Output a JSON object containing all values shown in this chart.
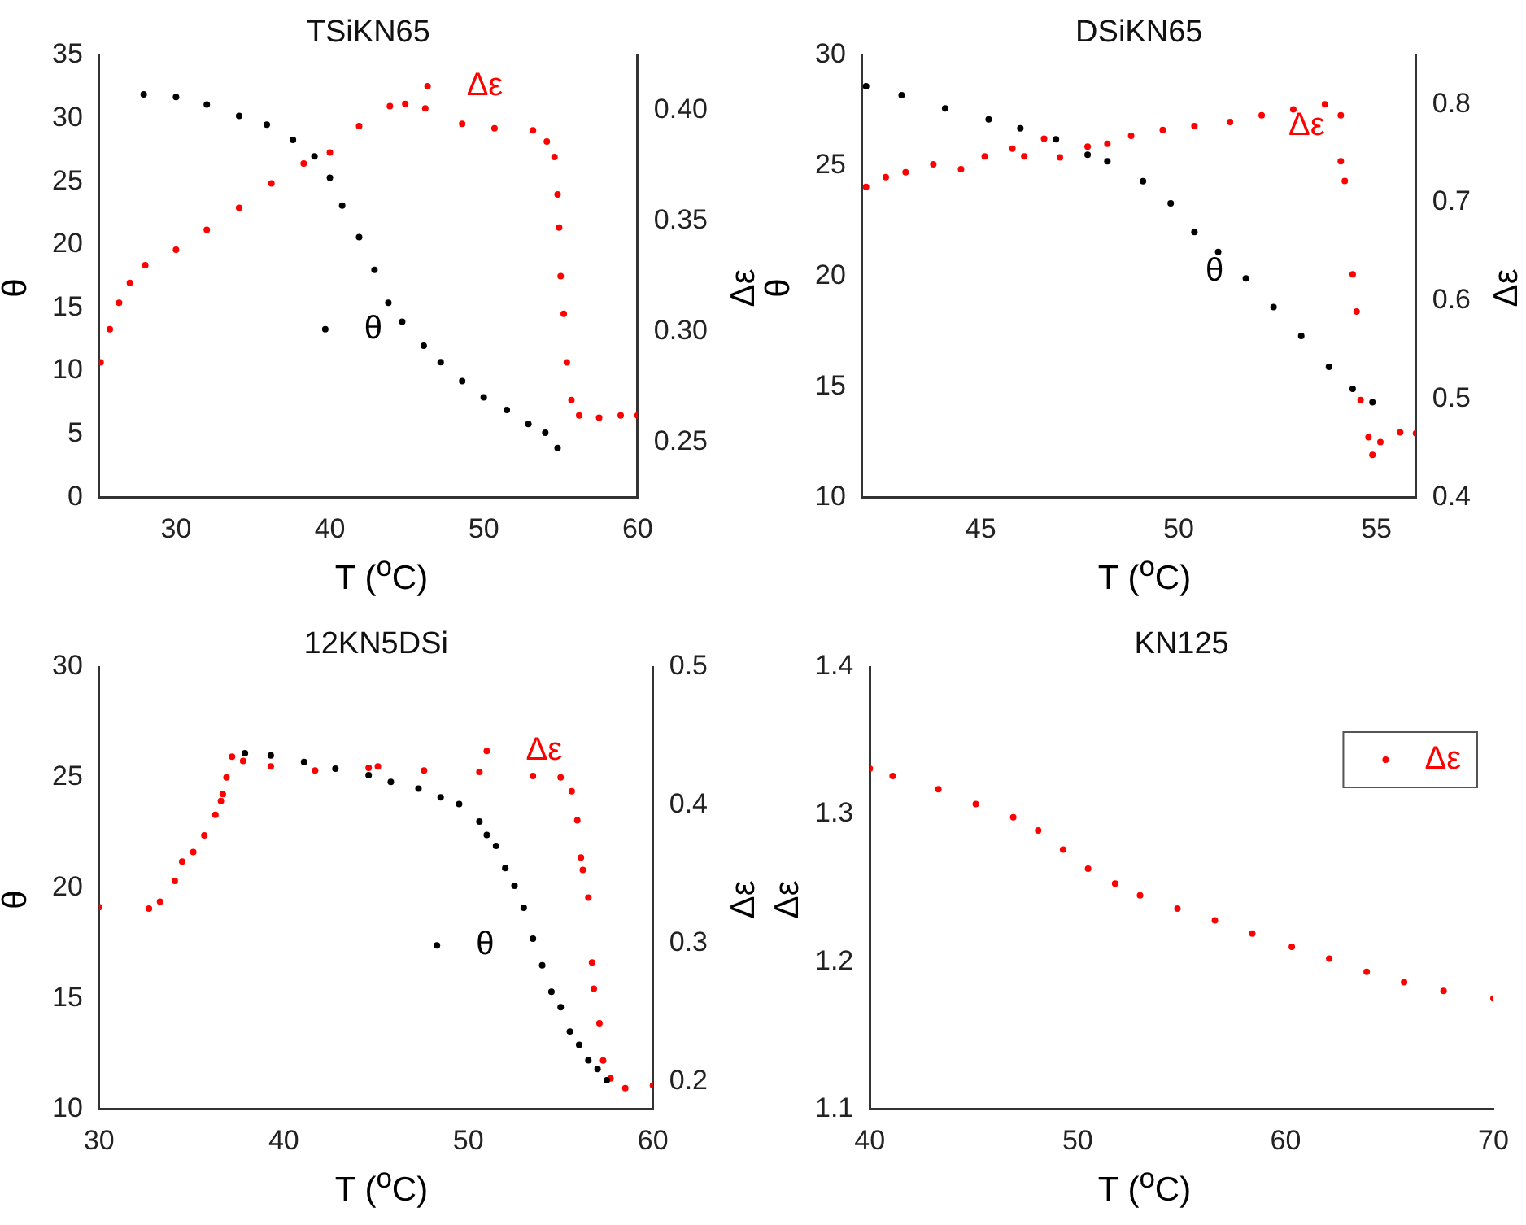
{
  "chart_data": [
    {
      "type": "scatter",
      "title": "TSiKN65",
      "xlabel": "T ($^{o}$C)",
      "ylabel": "θ",
      "y2label": "Δε",
      "marker": "circle",
      "legend": "center",
      "xlim": [
        25,
        60
      ],
      "xticks": [
        30,
        40,
        50,
        60
      ],
      "ylim": [
        0,
        35
      ],
      "yticks": [
        0,
        5,
        10,
        15,
        20,
        25,
        30,
        35
      ],
      "y2lim": [
        0.225,
        0.425
      ],
      "y2ticks": [
        0.25,
        {
          "value": 0.3,
          "label": "0.30"
        },
        0.35,
        {
          "value": 0.4,
          "label": "0.40"
        }
      ],
      "series": [
        {
          "name": "θ",
          "color": "#000000",
          "x": [
            27.9,
            30,
            32,
            34.1,
            35.9,
            37.6,
            39,
            40,
            40.8,
            41.9,
            42.9,
            43.8,
            44.7,
            46.1,
            47.2,
            48.6,
            50,
            51.5,
            52.9,
            54,
            54.8
          ],
          "values": [
            31.9,
            31.7,
            31.1,
            30.2,
            29.5,
            28.3,
            27.0,
            25.3,
            23.1,
            20.6,
            18.0,
            15.4,
            13.9,
            12.0,
            10.7,
            9.2,
            7.9,
            6.9,
            5.8,
            5.1,
            3.9
          ]
        },
        {
          "name": "Δε",
          "color": "#ff0000",
          "axis": "y2",
          "x": [
            25.1,
            25.7,
            26.3,
            27,
            28,
            30,
            32,
            34.1,
            36.2,
            38.3,
            40,
            41.9,
            43.9,
            44.9,
            46.2,
            48.6,
            50.7,
            53.2,
            54.1,
            54.6,
            54.8,
            54.9,
            55,
            55.2,
            55.4,
            55.7,
            56.2,
            57.5,
            58.9,
            60
          ],
          "values": [
            0.286,
            0.301,
            0.313,
            0.322,
            0.33,
            0.337,
            0.346,
            0.356,
            0.367,
            0.376,
            0.381,
            0.393,
            0.402,
            0.403,
            0.401,
            0.394,
            0.392,
            0.391,
            0.386,
            0.379,
            0.362,
            0.347,
            0.325,
            0.308,
            0.286,
            0.269,
            0.262,
            0.261,
            0.262,
            0.262
          ]
        }
      ]
    },
    {
      "type": "scatter",
      "title": "DSiKN65",
      "xlabel": "T ($^{o}$C)",
      "ylabel": "θ",
      "y2label": "Δε",
      "marker": "circle",
      "xlim": [
        42,
        56
      ],
      "xticks": [
        45,
        50,
        55
      ],
      "ylim": [
        10,
        30
      ],
      "yticks": [
        10,
        15,
        20,
        25,
        30
      ],
      "y2lim": [
        0.4,
        0.85
      ],
      "y2ticks": [
        0.4,
        0.5,
        0.6,
        0.7,
        0.8
      ],
      "series": [
        {
          "name": "θ",
          "color": "#000000",
          "x": [
            42.1,
            43,
            44.1,
            45.2,
            46,
            46.9,
            47.7,
            48.2,
            49.1,
            49.8,
            50.4,
            51,
            51.7,
            52.4,
            53.1,
            53.8,
            54.4,
            54.9
          ],
          "values": [
            28.6,
            28.2,
            27.6,
            27.1,
            26.7,
            26.2,
            25.5,
            25.2,
            24.3,
            23.3,
            22.0,
            21.1,
            19.9,
            18.6,
            17.3,
            15.9,
            14.9,
            14.3
          ]
        },
        {
          "name": "Δε",
          "color": "#ff0000",
          "axis": "y2",
          "x": [
            42.1,
            42.6,
            43.1,
            43.8,
            44.5,
            45.1,
            45.8,
            46.1,
            46.6,
            47,
            47.7,
            48.2,
            48.8,
            49.6,
            50.4,
            51.3,
            52.1,
            52.9,
            53.7,
            54.1,
            54.1,
            54.2,
            54.4,
            54.5,
            54.6,
            54.8,
            54.9,
            55.1,
            55.6,
            56
          ],
          "values": [
            0.716,
            0.726,
            0.731,
            0.739,
            0.734,
            0.747,
            0.755,
            0.747,
            0.765,
            0.746,
            0.757,
            0.76,
            0.768,
            0.774,
            0.778,
            0.782,
            0.789,
            0.795,
            0.8,
            0.789,
            0.742,
            0.722,
            0.627,
            0.589,
            0.499,
            0.461,
            0.443,
            0.456,
            0.466,
            0.465
          ]
        }
      ]
    },
    {
      "type": "scatter",
      "title": "12KN5DSi",
      "xlabel": "T ($^{o}$C)",
      "ylabel": "θ",
      "y2label": "Δε",
      "marker": "circle",
      "legend": "center",
      "xlim": [
        30,
        60
      ],
      "xticks": [
        30,
        40,
        50,
        60
      ],
      "ylim": [
        10,
        30
      ],
      "yticks": [
        10,
        15,
        20,
        25,
        30
      ],
      "y2lim": [
        0.18,
        0.5
      ],
      "y2ticks": [
        0.2,
        0.3,
        0.4,
        0.5
      ],
      "series": [
        {
          "name": "θ",
          "color": "#000000",
          "x": [
            37.9,
            39.3,
            41.1,
            42.8,
            44.6,
            45.8,
            47.3,
            48.5,
            49.5,
            50.6,
            51,
            51.5,
            52,
            52.5,
            53,
            53.5,
            54,
            54.5,
            55,
            55.5,
            56,
            56.5,
            57,
            57.5
          ],
          "values": [
            26.1,
            26.0,
            25.7,
            25.4,
            25.1,
            24.8,
            24.5,
            24.1,
            23.8,
            23.0,
            22.4,
            21.9,
            20.9,
            20.1,
            19.1,
            17.7,
            16.5,
            15.3,
            14.6,
            13.5,
            12.9,
            12.2,
            11.8,
            11.3
          ]
        },
        {
          "name": "Δε",
          "color": "#ff0000",
          "axis": "y2",
          "x": [
            30,
            32.7,
            33.3,
            34.1,
            34.5,
            35.1,
            35.7,
            36.3,
            36.6,
            36.7,
            36.9,
            37.2,
            37.8,
            39.3,
            41.7,
            44.6,
            45.1,
            47.6,
            50.6,
            53.5,
            55,
            55.6,
            55.9,
            56.1,
            56.2,
            56.5,
            56.7,
            56.8,
            57.1,
            57.3,
            57.7,
            58.5,
            60
          ],
          "values": [
            0.326,
            0.325,
            0.33,
            0.345,
            0.359,
            0.366,
            0.378,
            0.393,
            0.403,
            0.408,
            0.42,
            0.435,
            0.432,
            0.428,
            0.425,
            0.427,
            0.428,
            0.425,
            0.424,
            0.421,
            0.42,
            0.41,
            0.389,
            0.362,
            0.353,
            0.333,
            0.286,
            0.267,
            0.242,
            0.215,
            0.202,
            0.195,
            0.197
          ]
        }
      ]
    },
    {
      "type": "scatter",
      "title": "KN125",
      "xlabel": "T ($^{o}$C)",
      "ylabel": "Δε",
      "marker": "circle",
      "legend": "top right",
      "xlim": [
        40,
        70
      ],
      "xticks": [
        40,
        50,
        60,
        70
      ],
      "ylim": [
        1.1,
        1.4
      ],
      "yticks": [
        1.1,
        1.2,
        1.3,
        1.4
      ],
      "series": [
        {
          "name": "Δε",
          "color": "#ff0000",
          "x": [
            40,
            41.1,
            43.3,
            45.1,
            46.9,
            48.1,
            49.3,
            50.5,
            51.8,
            53,
            54.8,
            56.6,
            58.4,
            60.3,
            62.1,
            63.9,
            65.7,
            67.6,
            70
          ],
          "values": [
            1.331,
            1.326,
            1.317,
            1.307,
            1.298,
            1.289,
            1.276,
            1.263,
            1.253,
            1.245,
            1.236,
            1.228,
            1.219,
            1.21,
            1.202,
            1.193,
            1.186,
            1.18,
            1.175
          ]
        }
      ]
    }
  ]
}
